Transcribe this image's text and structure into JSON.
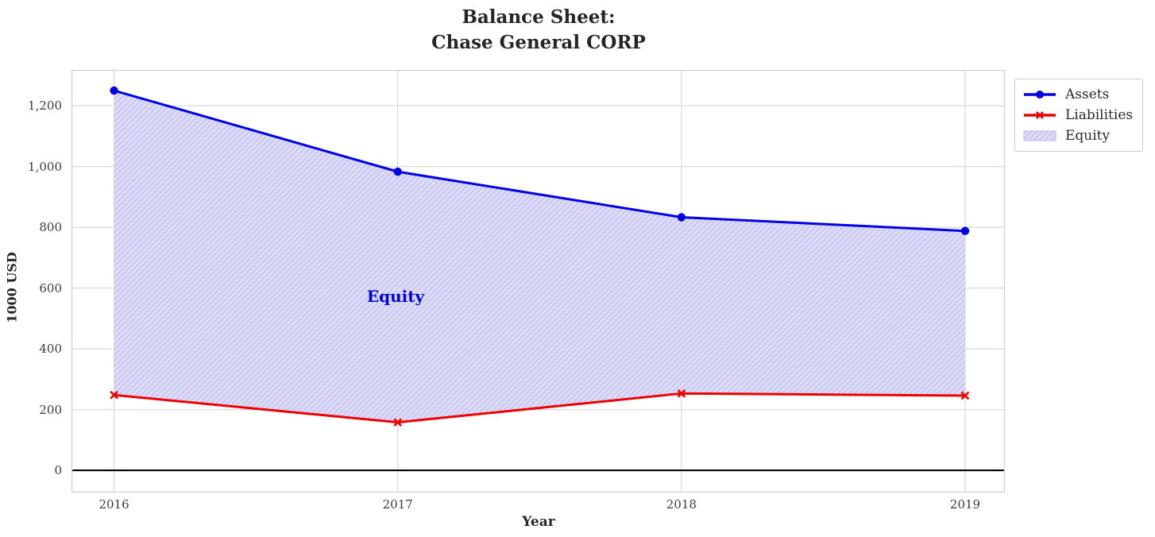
{
  "chart_data": {
    "type": "line",
    "title": "Balance Sheet: Chase General CORP",
    "title_lines": [
      "Balance Sheet:",
      "Chase General CORP"
    ],
    "xlabel": "Year",
    "ylabel": "1000 USD",
    "x": [
      2016,
      2017,
      2018,
      2019
    ],
    "series": [
      {
        "name": "Assets",
        "color": "#0202e8",
        "marker": "circle",
        "values": [
          1250,
          983,
          833,
          788
        ]
      },
      {
        "name": "Liabilities",
        "color": "#ee0000",
        "marker": "x",
        "values": [
          248,
          158,
          253,
          246
        ]
      }
    ],
    "area": {
      "name": "Equity",
      "between": [
        "Assets",
        "Liabilities"
      ],
      "fill": "#dcdcf6",
      "hatch_color": "#c2c2ee",
      "annotation": "Equity",
      "annotation_color": "#0000dd"
    },
    "xticks": [
      {
        "value": 2016,
        "label": "2016"
      },
      {
        "value": 2017,
        "label": "2017"
      },
      {
        "value": 2018,
        "label": "2018"
      },
      {
        "value": 2019,
        "label": "2019"
      }
    ],
    "yticks": [
      {
        "value": 0,
        "label": "0"
      },
      {
        "value": 200,
        "label": "200"
      },
      {
        "value": 400,
        "label": "400"
      },
      {
        "value": 600,
        "label": "600"
      },
      {
        "value": 800,
        "label": "800"
      },
      {
        "value": 1000,
        "label": "1,000"
      },
      {
        "value": 1200,
        "label": "1,200"
      }
    ],
    "xlim": [
      2015.85,
      2019.14
    ],
    "ylim": [
      -73,
      1318
    ],
    "grid": true,
    "legend_position": "upper-right-outside",
    "colors": {
      "grid": "#d9d9d9",
      "spine": "#cfcfcf",
      "tick_label": "#3c3c3c",
      "title": "#262626",
      "zero_line": "#000000",
      "background": "#ffffff"
    }
  }
}
